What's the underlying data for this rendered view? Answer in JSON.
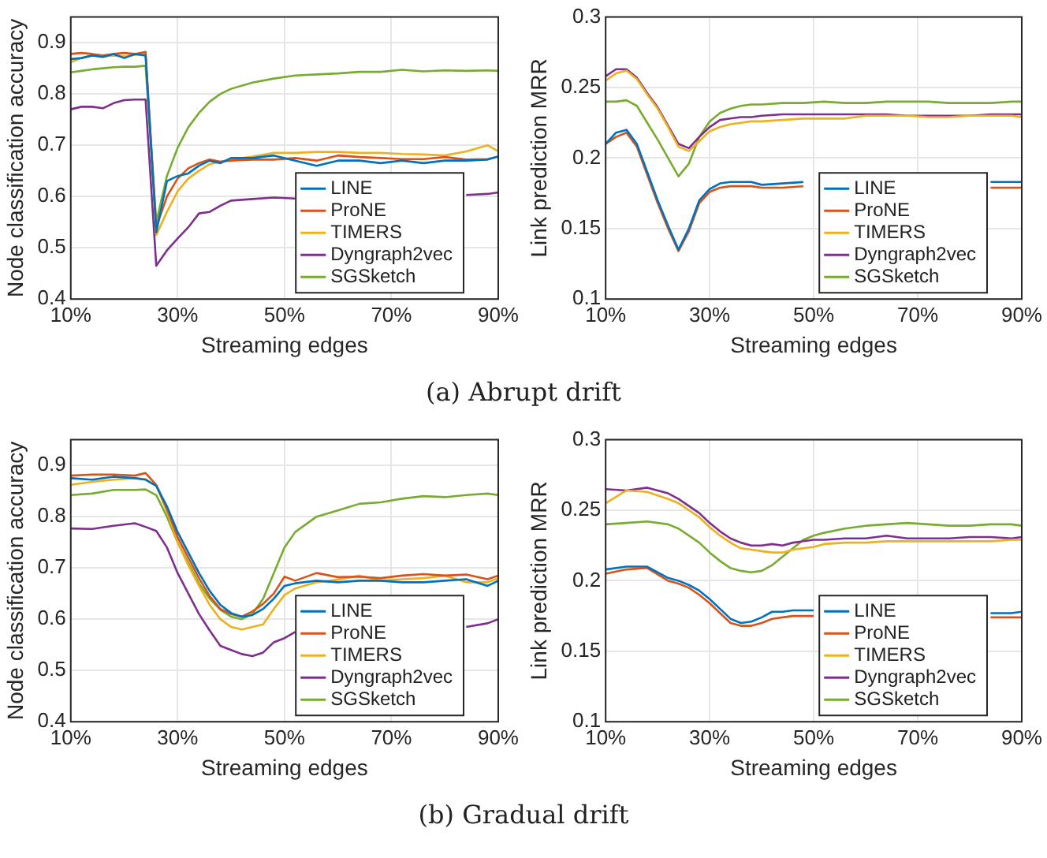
{
  "chart_data": [
    {
      "type": "line",
      "xlabel": "Streaming edges",
      "ylabel": "Node classification accuracy",
      "annotations": [
        "(a)  Abrupt drift"
      ],
      "x": [
        10,
        12,
        14,
        16,
        18,
        20,
        22,
        24,
        26,
        28,
        30,
        32,
        34,
        36,
        38,
        40,
        44,
        48,
        52,
        56,
        60,
        64,
        68,
        72,
        76,
        80,
        84,
        88,
        90
      ],
      "xlim": [
        10,
        90
      ],
      "xticks": [
        {
          "value": 10,
          "label": "10%"
        },
        {
          "value": 30,
          "label": "30%"
        },
        {
          "value": 50,
          "label": "50%"
        },
        {
          "value": 70,
          "label": "70%"
        },
        {
          "value": 90,
          "label": "90%"
        }
      ],
      "ylim": [
        0.4,
        0.95
      ],
      "yticks": [
        0.4,
        0.5,
        0.6,
        0.7,
        0.8,
        0.9
      ],
      "grid": true,
      "legend": "bottom right",
      "marker": "none",
      "line_style": "solid",
      "series": [
        {
          "name": "LINE",
          "color": "#0072bd",
          "values": [
            0.868,
            0.87,
            0.875,
            0.872,
            0.878,
            0.87,
            0.878,
            0.875,
            0.53,
            0.63,
            0.64,
            0.645,
            0.66,
            0.67,
            0.665,
            0.675,
            0.675,
            0.68,
            0.67,
            0.66,
            0.67,
            0.67,
            0.665,
            0.67,
            0.665,
            0.67,
            0.67,
            0.672,
            0.678
          ]
        },
        {
          "name": "ProNE",
          "color": "#d95319",
          "values": [
            0.878,
            0.88,
            0.878,
            0.875,
            0.878,
            0.88,
            0.878,
            0.882,
            0.54,
            0.6,
            0.635,
            0.655,
            0.665,
            0.672,
            0.668,
            0.67,
            0.672,
            0.672,
            0.675,
            0.67,
            0.68,
            0.677,
            0.675,
            0.673,
            0.673,
            0.677,
            0.672,
            0.673,
            0.678
          ]
        },
        {
          "name": "TIMERS",
          "color": "#edb120",
          "values": [
            0.862,
            0.87,
            0.875,
            0.873,
            0.875,
            0.873,
            0.876,
            0.878,
            0.525,
            0.57,
            0.61,
            0.635,
            0.65,
            0.663,
            0.668,
            0.672,
            0.678,
            0.685,
            0.685,
            0.687,
            0.687,
            0.685,
            0.685,
            0.683,
            0.682,
            0.68,
            0.688,
            0.7,
            0.688
          ]
        },
        {
          "name": "Dyngraph2vec",
          "color": "#7e2f8e",
          "values": [
            0.77,
            0.775,
            0.775,
            0.772,
            0.782,
            0.788,
            0.789,
            0.789,
            0.465,
            0.495,
            0.518,
            0.54,
            0.567,
            0.57,
            0.582,
            0.592,
            0.595,
            0.598,
            0.596,
            null,
            null,
            null,
            null,
            null,
            null,
            null,
            0.603,
            0.605,
            0.608
          ]
        },
        {
          "name": "SGSketch",
          "color": "#77ac30",
          "values": [
            0.842,
            0.845,
            0.848,
            0.85,
            0.852,
            0.853,
            0.853,
            0.855,
            0.55,
            0.64,
            0.695,
            0.735,
            0.763,
            0.785,
            0.8,
            0.81,
            0.822,
            0.83,
            0.836,
            0.838,
            0.84,
            0.843,
            0.843,
            0.847,
            0.844,
            0.846,
            0.845,
            0.846,
            0.845
          ]
        }
      ]
    },
    {
      "type": "line",
      "xlabel": "Streaming edges",
      "ylabel": "Link prediction MRR",
      "x": [
        10,
        12,
        14,
        16,
        18,
        20,
        22,
        24,
        26,
        28,
        30,
        32,
        34,
        36,
        38,
        40,
        44,
        48,
        52,
        56,
        60,
        64,
        68,
        72,
        76,
        80,
        84,
        88,
        90
      ],
      "xlim": [
        10,
        90
      ],
      "xticks": [
        {
          "value": 10,
          "label": "10%"
        },
        {
          "value": 30,
          "label": "30%"
        },
        {
          "value": 50,
          "label": "50%"
        },
        {
          "value": 70,
          "label": "70%"
        },
        {
          "value": 90,
          "label": "90%"
        }
      ],
      "ylim": [
        0.1,
        0.3
      ],
      "yticks": [
        0.1,
        0.15,
        0.2,
        0.25,
        0.3
      ],
      "grid": true,
      "legend": "bottom right",
      "marker": "none",
      "line_style": "solid",
      "series": [
        {
          "name": "LINE",
          "color": "#0072bd",
          "values": [
            0.21,
            0.218,
            0.22,
            0.21,
            0.19,
            0.17,
            0.152,
            0.135,
            0.15,
            0.17,
            0.178,
            0.182,
            0.183,
            0.183,
            0.183,
            0.181,
            0.182,
            0.183,
            null,
            null,
            null,
            null,
            null,
            null,
            null,
            null,
            0.183,
            0.183,
            0.183
          ]
        },
        {
          "name": "ProNE",
          "color": "#d95319",
          "values": [
            0.21,
            0.215,
            0.218,
            0.208,
            0.188,
            0.168,
            0.15,
            0.134,
            0.148,
            0.168,
            0.176,
            0.179,
            0.18,
            0.18,
            0.18,
            0.179,
            0.179,
            0.18,
            null,
            null,
            null,
            null,
            null,
            null,
            null,
            null,
            0.179,
            0.179,
            0.179
          ]
        },
        {
          "name": "TIMERS",
          "color": "#edb120",
          "values": [
            0.255,
            0.26,
            0.262,
            0.256,
            0.245,
            0.235,
            0.222,
            0.208,
            0.205,
            0.212,
            0.219,
            0.222,
            0.224,
            0.225,
            0.226,
            0.226,
            0.227,
            0.228,
            0.228,
            0.228,
            0.23,
            0.23,
            0.23,
            0.229,
            0.229,
            0.23,
            0.23,
            0.23,
            0.229
          ]
        },
        {
          "name": "Dyngraph2vec",
          "color": "#7e2f8e",
          "values": [
            0.258,
            0.263,
            0.263,
            0.257,
            0.246,
            0.236,
            0.223,
            0.21,
            0.207,
            0.215,
            0.222,
            0.227,
            0.228,
            0.229,
            0.229,
            0.23,
            0.231,
            0.231,
            0.231,
            0.231,
            0.231,
            0.231,
            0.23,
            0.23,
            0.23,
            0.23,
            0.231,
            0.231,
            0.231
          ]
        },
        {
          "name": "SGSketch",
          "color": "#77ac30",
          "values": [
            0.24,
            0.24,
            0.241,
            0.237,
            0.225,
            0.213,
            0.2,
            0.187,
            0.196,
            0.215,
            0.226,
            0.232,
            0.235,
            0.237,
            0.238,
            0.238,
            0.239,
            0.239,
            0.24,
            0.239,
            0.239,
            0.24,
            0.24,
            0.24,
            0.239,
            0.239,
            0.239,
            0.24,
            0.24
          ]
        }
      ]
    },
    {
      "type": "line",
      "xlabel": "Streaming edges",
      "ylabel": "Node classification accuracy",
      "annotations": [
        "(b)  Gradual drift"
      ],
      "x": [
        10,
        14,
        18,
        22,
        24,
        26,
        28,
        30,
        32,
        34,
        36,
        38,
        40,
        42,
        44,
        46,
        48,
        50,
        52,
        56,
        60,
        64,
        68,
        72,
        76,
        80,
        84,
        88,
        90
      ],
      "xlim": [
        10,
        90
      ],
      "xticks": [
        {
          "value": 10,
          "label": "10%"
        },
        {
          "value": 30,
          "label": "30%"
        },
        {
          "value": 50,
          "label": "50%"
        },
        {
          "value": 70,
          "label": "70%"
        },
        {
          "value": 90,
          "label": "90%"
        }
      ],
      "ylim": [
        0.4,
        0.95
      ],
      "yticks": [
        0.4,
        0.5,
        0.6,
        0.7,
        0.8,
        0.9
      ],
      "grid": true,
      "legend": "bottom right",
      "marker": "none",
      "line_style": "solid",
      "series": [
        {
          "name": "LINE",
          "color": "#0072bd",
          "values": [
            0.875,
            0.872,
            0.878,
            0.875,
            0.872,
            0.86,
            0.82,
            0.77,
            0.73,
            0.69,
            0.655,
            0.628,
            0.612,
            0.605,
            0.608,
            0.62,
            0.64,
            0.665,
            0.67,
            0.675,
            0.672,
            0.675,
            0.675,
            0.672,
            0.672,
            0.675,
            0.678,
            0.665,
            0.675
          ]
        },
        {
          "name": "ProNE",
          "color": "#d95319",
          "values": [
            0.88,
            0.882,
            0.882,
            0.88,
            0.885,
            0.862,
            0.815,
            0.76,
            0.72,
            0.68,
            0.645,
            0.62,
            0.61,
            0.605,
            0.615,
            0.63,
            0.65,
            0.683,
            0.675,
            0.69,
            0.682,
            0.683,
            0.68,
            0.685,
            0.688,
            0.685,
            0.687,
            0.678,
            0.685
          ]
        },
        {
          "name": "TIMERS",
          "color": "#edb120",
          "values": [
            0.862,
            0.868,
            0.872,
            0.875,
            0.873,
            0.86,
            0.81,
            0.75,
            0.705,
            0.665,
            0.628,
            0.6,
            0.585,
            0.58,
            0.585,
            0.59,
            0.62,
            0.647,
            0.66,
            0.672,
            0.677,
            0.685,
            0.675,
            0.678,
            0.68,
            0.685,
            0.672,
            0.672,
            0.68
          ]
        },
        {
          "name": "Dyngraph2vec",
          "color": "#7e2f8e",
          "values": [
            0.777,
            0.776,
            0.782,
            0.787,
            0.78,
            0.772,
            0.74,
            0.69,
            0.65,
            0.61,
            0.578,
            0.548,
            0.54,
            0.532,
            0.528,
            0.535,
            0.555,
            0.563,
            0.575,
            null,
            null,
            null,
            null,
            null,
            null,
            null,
            0.585,
            0.592,
            0.6
          ]
        },
        {
          "name": "SGSketch",
          "color": "#77ac30",
          "values": [
            0.842,
            0.845,
            0.852,
            0.852,
            0.853,
            0.842,
            0.8,
            0.75,
            0.71,
            0.67,
            0.64,
            0.618,
            0.605,
            0.6,
            0.61,
            0.64,
            0.69,
            0.74,
            0.77,
            0.8,
            0.812,
            0.825,
            0.828,
            0.835,
            0.84,
            0.838,
            0.842,
            0.845,
            0.842
          ]
        }
      ]
    },
    {
      "type": "line",
      "xlabel": "Streaming edges",
      "ylabel": "Link prediction MRR",
      "x": [
        10,
        14,
        18,
        22,
        24,
        26,
        28,
        30,
        32,
        34,
        36,
        38,
        40,
        42,
        44,
        46,
        48,
        50,
        52,
        56,
        60,
        64,
        68,
        72,
        76,
        80,
        84,
        88,
        90
      ],
      "xlim": [
        10,
        90
      ],
      "xticks": [
        {
          "value": 10,
          "label": "10%"
        },
        {
          "value": 30,
          "label": "30%"
        },
        {
          "value": 50,
          "label": "50%"
        },
        {
          "value": 70,
          "label": "70%"
        },
        {
          "value": 90,
          "label": "90%"
        }
      ],
      "ylim": [
        0.1,
        0.3
      ],
      "yticks": [
        0.1,
        0.15,
        0.2,
        0.25,
        0.3
      ],
      "grid": true,
      "legend": "bottom right",
      "marker": "none",
      "line_style": "solid",
      "series": [
        {
          "name": "LINE",
          "color": "#0072bd",
          "values": [
            0.208,
            0.21,
            0.21,
            0.202,
            0.2,
            0.197,
            0.193,
            0.187,
            0.18,
            0.173,
            0.17,
            0.171,
            0.174,
            0.178,
            0.178,
            0.179,
            0.179,
            0.179,
            null,
            null,
            null,
            null,
            null,
            null,
            null,
            null,
            0.177,
            0.177,
            0.178
          ]
        },
        {
          "name": "ProNE",
          "color": "#d95319",
          "values": [
            0.205,
            0.208,
            0.209,
            0.2,
            0.198,
            0.195,
            0.19,
            0.184,
            0.177,
            0.17,
            0.168,
            0.168,
            0.17,
            0.173,
            0.174,
            0.175,
            0.175,
            0.175,
            null,
            null,
            null,
            null,
            null,
            null,
            null,
            null,
            0.174,
            0.174,
            0.174
          ]
        },
        {
          "name": "TIMERS",
          "color": "#edb120",
          "values": [
            0.255,
            0.264,
            0.263,
            0.258,
            0.255,
            0.25,
            0.245,
            0.238,
            0.232,
            0.227,
            0.223,
            0.222,
            0.221,
            0.22,
            0.22,
            0.222,
            0.223,
            0.224,
            0.226,
            0.227,
            0.227,
            0.228,
            0.228,
            0.228,
            0.228,
            0.228,
            0.228,
            0.229,
            0.229
          ]
        },
        {
          "name": "Dyngraph2vec",
          "color": "#7e2f8e",
          "values": [
            0.265,
            0.264,
            0.266,
            0.262,
            0.258,
            0.253,
            0.248,
            0.241,
            0.235,
            0.23,
            0.227,
            0.225,
            0.225,
            0.226,
            0.225,
            0.227,
            0.228,
            0.229,
            0.229,
            0.23,
            0.23,
            0.232,
            0.23,
            0.23,
            0.23,
            0.231,
            0.231,
            0.23,
            0.231
          ]
        },
        {
          "name": "SGSketch",
          "color": "#77ac30",
          "values": [
            0.24,
            0.241,
            0.242,
            0.24,
            0.237,
            0.232,
            0.227,
            0.22,
            0.214,
            0.209,
            0.207,
            0.206,
            0.207,
            0.211,
            0.217,
            0.223,
            0.229,
            0.232,
            0.234,
            0.237,
            0.239,
            0.24,
            0.241,
            0.24,
            0.239,
            0.239,
            0.24,
            0.24,
            0.239
          ]
        }
      ]
    }
  ]
}
